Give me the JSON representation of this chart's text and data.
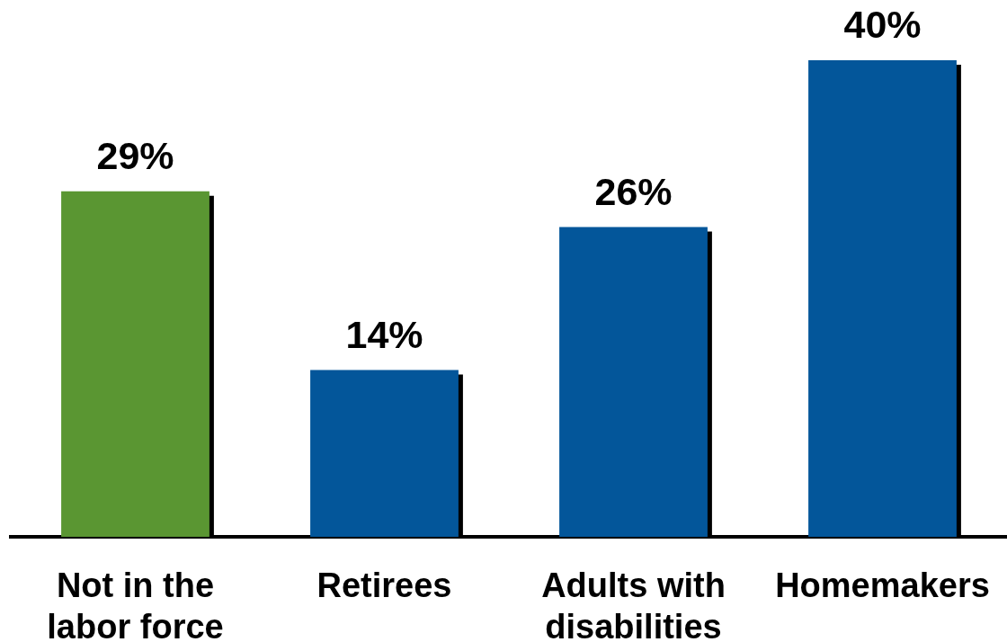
{
  "chart_data": {
    "type": "bar",
    "categories": [
      "Not in the labor force",
      "Retirees",
      "Adults with disabilities",
      "Homemakers"
    ],
    "values": [
      29,
      14,
      26,
      40
    ],
    "colors": [
      "#5a9632",
      "#03569a",
      "#03569a",
      "#03569a"
    ],
    "value_labels": [
      "29%",
      "14%",
      "26%",
      "40%"
    ],
    "grid": false,
    "legend": false
  }
}
